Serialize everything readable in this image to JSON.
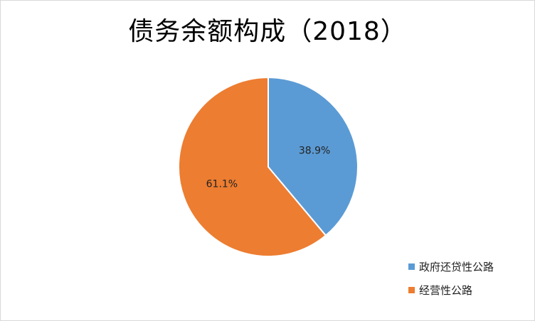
{
  "chart_data": {
    "type": "pie",
    "title": "债务余额构成（2018）",
    "series": [
      {
        "name": "政府还贷性公路",
        "value": 38.9,
        "label": "38.9%",
        "color": "#5b9bd5"
      },
      {
        "name": "经营性公路",
        "value": 61.1,
        "label": "61.1%",
        "color": "#ed7d31"
      }
    ],
    "legend_position": "bottom-right",
    "start_angle": "top",
    "direction": "clockwise"
  }
}
